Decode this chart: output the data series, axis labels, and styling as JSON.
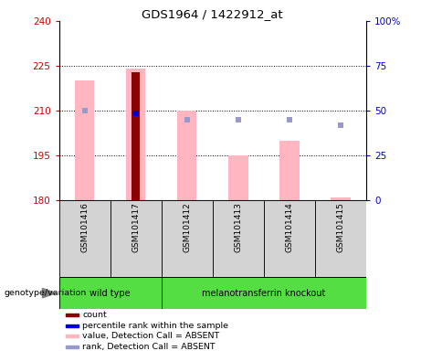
{
  "title": "GDS1964 / 1422912_at",
  "samples": [
    "GSM101416",
    "GSM101417",
    "GSM101412",
    "GSM101413",
    "GSM101414",
    "GSM101415"
  ],
  "groups": [
    "wild type",
    "wild type",
    "melanotransferrin knockout",
    "melanotransferrin knockout",
    "melanotransferrin knockout",
    "melanotransferrin knockout"
  ],
  "group_label_green": "#66dd55",
  "ymin": 180,
  "ymax": 240,
  "yticks_left": [
    180,
    195,
    210,
    225,
    240
  ],
  "yticks_right": [
    0,
    25,
    50,
    75,
    100
  ],
  "yticks_right_labels": [
    "0",
    "25",
    "50",
    "75",
    "100%"
  ],
  "pink_bar_top": [
    220,
    224,
    210,
    195,
    200,
    181
  ],
  "dark_red_bar_top": [
    null,
    223,
    null,
    null,
    null,
    null
  ],
  "blue_square_y_left": [
    210,
    null,
    null,
    null,
    null,
    null
  ],
  "blue_square_y_right": [
    null,
    209,
    null,
    null,
    null,
    null
  ],
  "light_blue_square_y": [
    null,
    null,
    207,
    207,
    207,
    205
  ],
  "pink_bar_color": "#ffb6c1",
  "dark_red_color": "#8b0000",
  "blue_color": "#0000cd",
  "light_blue_color": "#9999cc",
  "label_color_left": "#cc0000",
  "label_color_right": "#0000cc",
  "genotype_label": "genotype/variation",
  "legend_items": [
    {
      "color": "#8b0000",
      "shape": "square",
      "label": "count"
    },
    {
      "color": "#0000cd",
      "shape": "square",
      "label": "percentile rank within the sample"
    },
    {
      "color": "#ffb6c1",
      "shape": "square",
      "label": "value, Detection Call = ABSENT"
    },
    {
      "color": "#9999cc",
      "shape": "square",
      "label": "rank, Detection Call = ABSENT"
    }
  ]
}
